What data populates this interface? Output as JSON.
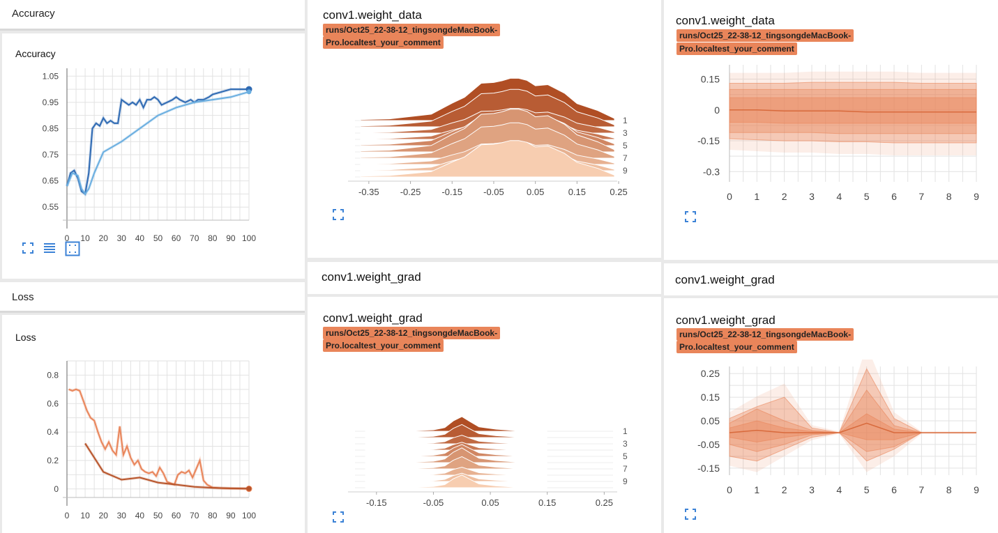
{
  "left": {
    "accuracy_header": "Accuracy",
    "accuracy_card_title": "Accuracy",
    "loss_header": "Loss",
    "loss_card_title": "Loss",
    "icons": [
      "fullscreen-icon",
      "list-icon",
      "fit-domain-icon"
    ]
  },
  "cards": {
    "weight_data_hist": {
      "title": "conv1.weight_data",
      "run_line1": "runs/Oct25_22-38-12_tingsongdeMacBook-",
      "run_line2": "Pro.localtest_your_comment"
    },
    "weight_data_dist": {
      "title": "conv1.weight_data",
      "run_line1": "runs/Oct25_22-38-12_tingsongdeMacBook-",
      "run_line2": "Pro.localtest_your_comment"
    },
    "grad_section_left": "conv1.weight_grad",
    "grad_section_right": "conv1.weight_grad",
    "weight_grad_hist": {
      "title": "conv1.weight_grad",
      "run_line1": "runs/Oct25_22-38-12_tingsongdeMacBook-",
      "run_line2": "Pro.localtest_your_comment"
    },
    "weight_grad_dist": {
      "title": "conv1.weight_grad",
      "run_line1": "runs/Oct25_22-38-12_tingsongdeMacBook-",
      "run_line2": "Pro.localtest_your_comment"
    }
  },
  "colors": {
    "blue_dark": "#2f6ab3",
    "blue_light": "#6aaee0",
    "orange": "#e9855a",
    "orange_dark": "#b8552b",
    "grid": "#dddddd"
  },
  "chart_data": [
    {
      "type": "line",
      "name": "accuracy",
      "title": "Accuracy",
      "xlim": [
        0,
        100
      ],
      "ylim": [
        0.5,
        1.08
      ],
      "xticks": [
        0,
        10,
        20,
        30,
        40,
        50,
        60,
        70,
        80,
        90,
        100
      ],
      "yticks": [
        0.55,
        0.65,
        0.75,
        0.85,
        0.95,
        1.05
      ],
      "ytick_labels": [
        "0.55",
        "0.65",
        "0.75",
        "0.85",
        "0.95",
        "1.05"
      ],
      "series": [
        {
          "color": "#2f6ab3",
          "x": [
            0,
            2,
            4,
            6,
            8,
            10,
            12,
            14,
            16,
            18,
            20,
            22,
            24,
            26,
            28,
            30,
            32,
            34,
            36,
            38,
            40,
            42,
            44,
            46,
            48,
            50,
            52,
            55,
            58,
            60,
            62,
            65,
            68,
            70,
            72,
            75,
            78,
            80,
            85,
            90,
            95,
            100
          ],
          "y": [
            0.63,
            0.68,
            0.69,
            0.66,
            0.61,
            0.6,
            0.68,
            0.85,
            0.87,
            0.86,
            0.89,
            0.87,
            0.88,
            0.87,
            0.87,
            0.96,
            0.95,
            0.94,
            0.95,
            0.94,
            0.96,
            0.93,
            0.96,
            0.96,
            0.97,
            0.96,
            0.94,
            0.95,
            0.96,
            0.97,
            0.96,
            0.95,
            0.96,
            0.95,
            0.96,
            0.96,
            0.97,
            0.98,
            0.99,
            1.0,
            1.0,
            1.0
          ]
        },
        {
          "color": "#6aaee0",
          "x": [
            0,
            3,
            6,
            8,
            10,
            12,
            15,
            20,
            30,
            40,
            50,
            60,
            70,
            80,
            90,
            100
          ],
          "y": [
            0.63,
            0.68,
            0.67,
            0.62,
            0.6,
            0.62,
            0.68,
            0.76,
            0.8,
            0.85,
            0.9,
            0.93,
            0.95,
            0.96,
            0.97,
            0.99
          ]
        }
      ]
    },
    {
      "type": "line",
      "name": "loss",
      "title": "Loss",
      "xlim": [
        0,
        100
      ],
      "ylim": [
        -0.06,
        0.9
      ],
      "xticks": [
        0,
        10,
        20,
        30,
        40,
        50,
        60,
        70,
        80,
        90,
        100
      ],
      "yticks": [
        0,
        0.2,
        0.4,
        0.6,
        0.8
      ],
      "ytick_labels": [
        "0",
        "0.2",
        "0.4",
        "0.6",
        "0.8"
      ],
      "series": [
        {
          "color": "#e9855a",
          "x": [
            1,
            3,
            5,
            7,
            9,
            11,
            13,
            15,
            17,
            19,
            21,
            23,
            25,
            27,
            29,
            31,
            33,
            35,
            37,
            39,
            41,
            43,
            45,
            47,
            49,
            51,
            53,
            55,
            57,
            59,
            61,
            63,
            65,
            67,
            69,
            71,
            73,
            75,
            77,
            80,
            85,
            90,
            95,
            100
          ],
          "y": [
            0.7,
            0.69,
            0.7,
            0.69,
            0.62,
            0.55,
            0.5,
            0.48,
            0.4,
            0.33,
            0.28,
            0.33,
            0.27,
            0.24,
            0.44,
            0.24,
            0.3,
            0.22,
            0.17,
            0.2,
            0.14,
            0.12,
            0.11,
            0.12,
            0.09,
            0.15,
            0.11,
            0.05,
            0.04,
            0.03,
            0.1,
            0.12,
            0.11,
            0.13,
            0.08,
            0.14,
            0.2,
            0.06,
            0.03,
            0.01,
            0.005,
            0.003,
            0.002,
            0.001
          ]
        },
        {
          "color": "#b8552b",
          "x": [
            10,
            20,
            30,
            40,
            50,
            60,
            70,
            80,
            90,
            100
          ],
          "y": [
            0.32,
            0.12,
            0.065,
            0.08,
            0.045,
            0.03,
            0.015,
            0.008,
            0.004,
            0.002
          ]
        }
      ]
    },
    {
      "type": "area",
      "name": "conv1.weight_data histogram",
      "xlim": [
        -0.4,
        0.27
      ],
      "xticks": [
        -0.35,
        -0.25,
        -0.15,
        -0.05,
        0.05,
        0.15,
        0.25
      ],
      "xtick_labels": [
        "-0.35",
        "-0.25",
        "-0.15",
        "-0.05",
        "0.05",
        "0.15",
        "0.25"
      ],
      "step_labels": [
        "1",
        "3",
        "5",
        "7",
        "9"
      ],
      "steps": 10,
      "x": [
        -0.37,
        -0.3,
        -0.25,
        -0.2,
        -0.15,
        -0.12,
        -0.08,
        -0.05,
        -0.03,
        -0.01,
        0.01,
        0.03,
        0.05,
        0.08,
        0.12,
        0.15,
        0.2,
        0.24
      ],
      "y": [
        0.02,
        0.04,
        0.08,
        0.15,
        0.35,
        0.55,
        0.75,
        0.9,
        0.8,
        1.0,
        0.85,
        0.95,
        0.7,
        0.85,
        0.55,
        0.4,
        0.2,
        0.05
      ]
    },
    {
      "type": "area",
      "name": "conv1.weight_data distribution",
      "xlim": [
        0,
        9
      ],
      "ylim": [
        -0.35,
        0.22
      ],
      "xticks": [
        0,
        1,
        2,
        3,
        4,
        5,
        6,
        7,
        8,
        9
      ],
      "yticks": [
        -0.3,
        -0.15,
        0,
        0.15
      ],
      "ytick_labels": [
        "-0.3",
        "-0.15",
        "0",
        "0.15"
      ],
      "bands": [
        {
          "upper": [
            0.13,
            0.13,
            0.13,
            0.135,
            0.135,
            0.135,
            0.135,
            0.13,
            0.13,
            0.13
          ],
          "lower": [
            -0.14,
            -0.145,
            -0.15,
            -0.15,
            -0.155,
            -0.155,
            -0.16,
            -0.16,
            -0.16,
            -0.16
          ]
        },
        {
          "upper": [
            0.1,
            0.1,
            0.1,
            0.1,
            0.1,
            0.1,
            0.1,
            0.1,
            0.1,
            0.1
          ],
          "lower": [
            -0.11,
            -0.11,
            -0.11,
            -0.11,
            -0.115,
            -0.115,
            -0.115,
            -0.115,
            -0.115,
            -0.115
          ]
        },
        {
          "upper": [
            0.06,
            0.06,
            0.06,
            0.06,
            0.06,
            0.06,
            0.06,
            0.06,
            0.06,
            0.06
          ],
          "lower": [
            -0.06,
            -0.06,
            -0.065,
            -0.065,
            -0.065,
            -0.065,
            -0.065,
            -0.065,
            -0.065,
            -0.065
          ]
        }
      ],
      "median": [
        0.0,
        0.0,
        -0.005,
        -0.005,
        -0.005,
        -0.01,
        -0.01,
        -0.01,
        -0.01,
        -0.01
      ]
    },
    {
      "type": "area",
      "name": "conv1.weight_grad histogram",
      "xlim": [
        -0.2,
        0.29
      ],
      "xticks": [
        -0.15,
        -0.05,
        0.05,
        0.15,
        0.25
      ],
      "xtick_labels": [
        "-0.15",
        "-0.05",
        "0.05",
        "0.15",
        "0.25"
      ],
      "step_labels": [
        "1",
        "3",
        "5",
        "7",
        "9"
      ],
      "steps": 10,
      "x": [
        -0.17,
        -0.1,
        -0.05,
        -0.03,
        -0.015,
        0.0,
        0.015,
        0.03,
        0.06,
        0.1,
        0.15
      ],
      "y": [
        0.0,
        0.02,
        0.08,
        0.25,
        0.6,
        1.0,
        0.55,
        0.3,
        0.12,
        0.03,
        0.0
      ]
    },
    {
      "type": "area",
      "name": "conv1.weight_grad distribution",
      "xlim": [
        0,
        9
      ],
      "ylim": [
        -0.18,
        0.28
      ],
      "xticks": [
        0,
        1,
        2,
        3,
        4,
        5,
        6,
        7,
        8,
        9
      ],
      "yticks": [
        -0.15,
        -0.05,
        0.05,
        0.15,
        0.25
      ],
      "ytick_labels": [
        "-0.15",
        "-0.05",
        "0.05",
        "0.15",
        "0.25"
      ],
      "bands": [
        {
          "upper": [
            0.06,
            0.11,
            0.15,
            0.02,
            0.0,
            0.27,
            0.06,
            0.0,
            0.0,
            0.0
          ],
          "lower": [
            -0.1,
            -0.12,
            -0.07,
            -0.02,
            0.0,
            -0.12,
            -0.07,
            0.0,
            0.0,
            0.0
          ]
        },
        {
          "upper": [
            0.04,
            0.1,
            0.05,
            0.01,
            0.0,
            0.18,
            0.03,
            0.0,
            0.0,
            0.0
          ],
          "lower": [
            -0.05,
            -0.08,
            -0.05,
            -0.01,
            0.0,
            -0.08,
            -0.06,
            0.0,
            0.0,
            0.0
          ]
        },
        {
          "upper": [
            0.02,
            0.05,
            0.02,
            0.005,
            0.0,
            0.08,
            0.015,
            0.0,
            0.0,
            0.0
          ],
          "lower": [
            -0.02,
            -0.04,
            -0.02,
            -0.005,
            0.0,
            -0.03,
            -0.03,
            0.0,
            0.0,
            0.0
          ]
        }
      ],
      "median": [
        0.0,
        0.01,
        0.0,
        0.0,
        0.0,
        0.04,
        0.0,
        0.0,
        0.0,
        0.0
      ]
    }
  ]
}
